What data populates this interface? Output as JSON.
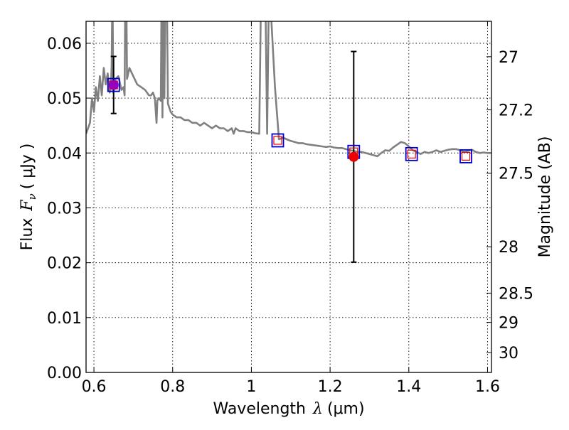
{
  "chart_data": {
    "type": "scatter",
    "xlabel": "Wavelength",
    "xlabel_symbol": "λ",
    "xlabel_unit": "(μm)",
    "ylabel": "Flux",
    "ylabel_symbol": "F",
    "ylabel_subscript": "ν",
    "ylabel_unit": "( μJy )",
    "ylabel_right": "Magnitude (AB)",
    "xlim": [
      0.58,
      1.61
    ],
    "ylim": [
      0.0,
      0.064
    ],
    "grid": true,
    "x_ticks": [
      0.6,
      0.8,
      1.0,
      1.2,
      1.4,
      1.6
    ],
    "x_tick_labels": [
      "0.6",
      "0.8",
      "1",
      "1.2",
      "1.4",
      "1.6"
    ],
    "y_ticks": [
      0.0,
      0.01,
      0.02,
      0.03,
      0.04,
      0.05,
      0.06
    ],
    "y_tick_labels": [
      "0.00",
      "0.01",
      "0.02",
      "0.03",
      "0.04",
      "0.05",
      "0.06"
    ],
    "right_ticks": [
      {
        "label": "27",
        "mag": 27.0
      },
      {
        "label": "27.2",
        "mag": 27.2
      },
      {
        "label": "27.5",
        "mag": 27.5
      },
      {
        "label": "28",
        "mag": 28.0
      },
      {
        "label": "28.5",
        "mag": 28.5
      },
      {
        "label": "29",
        "mag": 29.0
      },
      {
        "label": "30",
        "mag": 30.0
      }
    ],
    "colors": {
      "sed": "#808080",
      "observed": "#ee0000",
      "observed_first": "#9900bb",
      "model_outer": "#0000cc",
      "model_inner": "#ee0000",
      "errorbar": "#000000"
    },
    "sed_model": [
      [
        0.58,
        0.0435
      ],
      [
        0.59,
        0.0455
      ],
      [
        0.595,
        0.05
      ],
      [
        0.6,
        0.0475
      ],
      [
        0.605,
        0.052
      ],
      [
        0.61,
        0.0495
      ],
      [
        0.615,
        0.054
      ],
      [
        0.62,
        0.0505
      ],
      [
        0.625,
        0.0555
      ],
      [
        0.63,
        0.0525
      ],
      [
        0.635,
        0.0545
      ],
      [
        0.64,
        0.051
      ],
      [
        0.643,
        0.052
      ],
      [
        0.645,
        0.056
      ],
      [
        0.647,
        0.072
      ],
      [
        0.649,
        0.051
      ],
      [
        0.655,
        0.0535
      ],
      [
        0.662,
        0.054
      ],
      [
        0.67,
        0.0515
      ],
      [
        0.675,
        0.052
      ],
      [
        0.678,
        0.0505
      ],
      [
        0.68,
        0.072
      ],
      [
        0.682,
        0.072
      ],
      [
        0.684,
        0.0535
      ],
      [
        0.69,
        0.0555
      ],
      [
        0.7,
        0.054
      ],
      [
        0.71,
        0.0525
      ],
      [
        0.72,
        0.052
      ],
      [
        0.73,
        0.0515
      ],
      [
        0.74,
        0.0505
      ],
      [
        0.745,
        0.0505
      ],
      [
        0.75,
        0.051
      ],
      [
        0.755,
        0.05
      ],
      [
        0.757,
        0.0475
      ],
      [
        0.759,
        0.0455
      ],
      [
        0.761,
        0.0495
      ],
      [
        0.765,
        0.05
      ],
      [
        0.77,
        0.0495
      ],
      [
        0.772,
        0.072
      ],
      [
        0.774,
        0.0465
      ],
      [
        0.776,
        0.072
      ],
      [
        0.779,
        0.05
      ],
      [
        0.782,
        0.072
      ],
      [
        0.785,
        0.072
      ],
      [
        0.788,
        0.049
      ],
      [
        0.795,
        0.0475
      ],
      [
        0.8,
        0.047
      ],
      [
        0.81,
        0.0465
      ],
      [
        0.82,
        0.0465
      ],
      [
        0.83,
        0.046
      ],
      [
        0.84,
        0.046
      ],
      [
        0.85,
        0.0455
      ],
      [
        0.86,
        0.0455
      ],
      [
        0.87,
        0.045
      ],
      [
        0.88,
        0.0455
      ],
      [
        0.89,
        0.045
      ],
      [
        0.9,
        0.0445
      ],
      [
        0.91,
        0.045
      ],
      [
        0.92,
        0.0445
      ],
      [
        0.93,
        0.0445
      ],
      [
        0.94,
        0.044
      ],
      [
        0.95,
        0.0445
      ],
      [
        0.955,
        0.0435
      ],
      [
        0.96,
        0.0445
      ],
      [
        0.97,
        0.044
      ],
      [
        0.98,
        0.044
      ],
      [
        0.99,
        0.0438
      ],
      [
        1.0,
        0.0438
      ],
      [
        1.01,
        0.0436
      ],
      [
        1.02,
        0.0435
      ],
      [
        1.025,
        0.072
      ],
      [
        1.035,
        0.072
      ],
      [
        1.04,
        0.0435
      ],
      [
        1.045,
        0.072
      ],
      [
        1.06,
        0.052
      ],
      [
        1.07,
        0.0425
      ],
      [
        1.08,
        0.0428
      ],
      [
        1.09,
        0.0425
      ],
      [
        1.1,
        0.0422
      ],
      [
        1.11,
        0.042
      ],
      [
        1.12,
        0.0418
      ],
      [
        1.13,
        0.0418
      ],
      [
        1.14,
        0.0416
      ],
      [
        1.15,
        0.0415
      ],
      [
        1.16,
        0.0414
      ],
      [
        1.17,
        0.0413
      ],
      [
        1.18,
        0.0412
      ],
      [
        1.19,
        0.0411
      ],
      [
        1.2,
        0.0412
      ],
      [
        1.21,
        0.041
      ],
      [
        1.22,
        0.0409
      ],
      [
        1.23,
        0.0409
      ],
      [
        1.24,
        0.0407
      ],
      [
        1.25,
        0.0405
      ],
      [
        1.26,
        0.0404
      ],
      [
        1.27,
        0.0402
      ],
      [
        1.28,
        0.0402
      ],
      [
        1.29,
        0.04
      ],
      [
        1.3,
        0.0398
      ],
      [
        1.31,
        0.0396
      ],
      [
        1.32,
        0.0394
      ],
      [
        1.33,
        0.04
      ],
      [
        1.34,
        0.0405
      ],
      [
        1.35,
        0.0404
      ],
      [
        1.36,
        0.041
      ],
      [
        1.37,
        0.0415
      ],
      [
        1.38,
        0.042
      ],
      [
        1.39,
        0.0418
      ],
      [
        1.4,
        0.0412
      ],
      [
        1.41,
        0.0405
      ],
      [
        1.42,
        0.0402
      ],
      [
        1.43,
        0.0398
      ],
      [
        1.44,
        0.0402
      ],
      [
        1.45,
        0.04
      ],
      [
        1.46,
        0.0402
      ],
      [
        1.47,
        0.0405
      ],
      [
        1.48,
        0.0402
      ],
      [
        1.49,
        0.0404
      ],
      [
        1.5,
        0.0406
      ],
      [
        1.51,
        0.0407
      ],
      [
        1.52,
        0.0407
      ],
      [
        1.53,
        0.0405
      ],
      [
        1.54,
        0.0402
      ],
      [
        1.55,
        0.0404
      ],
      [
        1.56,
        0.0406
      ],
      [
        1.57,
        0.0402
      ],
      [
        1.58,
        0.04
      ],
      [
        1.59,
        0.0401
      ],
      [
        1.6,
        0.04
      ],
      [
        1.61,
        0.04
      ]
    ],
    "model_points": [
      {
        "x": 0.65,
        "y": 0.0524
      },
      {
        "x": 1.067,
        "y": 0.0423
      },
      {
        "x": 1.26,
        "y": 0.0402
      },
      {
        "x": 1.407,
        "y": 0.0398
      },
      {
        "x": 1.545,
        "y": 0.0394
      }
    ],
    "observed_points": [
      {
        "x": 0.65,
        "y": 0.0524,
        "err": 0.0052
      },
      {
        "x": 1.26,
        "y": 0.0393,
        "err": 0.0192
      }
    ]
  }
}
